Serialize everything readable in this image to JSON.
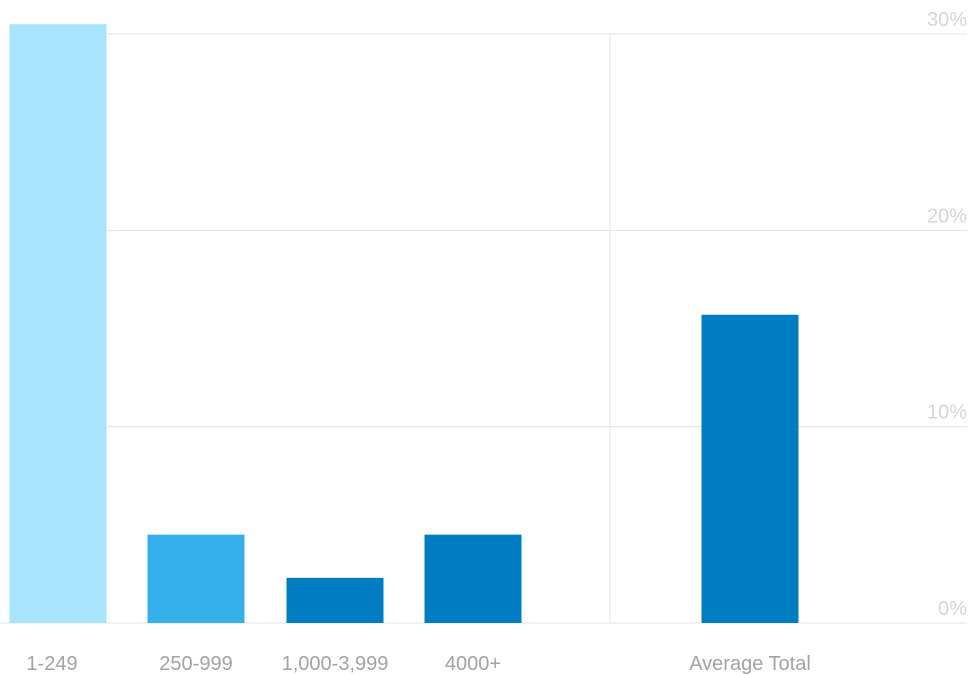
{
  "chart_data": {
    "type": "bar",
    "title": "",
    "xlabel": "",
    "ylabel": "",
    "categories": [
      "1-249",
      "250-999",
      "1,000-3,999",
      "4000+",
      "Average Total"
    ],
    "values": [
      30.5,
      4.5,
      2.3,
      4.5,
      15.7
    ],
    "bar_colors": [
      "#a8e5fc",
      "#36b0ec",
      "#007cc2",
      "#007cc2",
      "#007cc2"
    ],
    "ylim": [
      0,
      30
    ],
    "yticks": [
      {
        "value": 0,
        "label": "0%"
      },
      {
        "value": 10,
        "label": "10%"
      },
      {
        "value": 20,
        "label": "20%"
      },
      {
        "value": 30,
        "label": "30%"
      }
    ],
    "grid": true,
    "legend": "none"
  },
  "colors": {
    "grid": "#e3e3e3",
    "tick_text": "#d6d6d6",
    "category_text": "#a3a3a3"
  }
}
